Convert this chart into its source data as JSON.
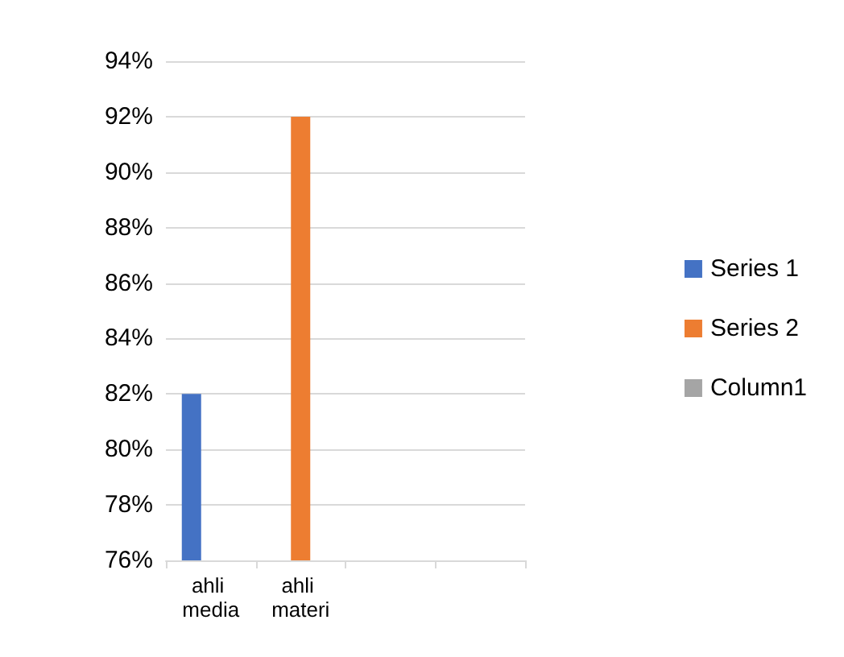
{
  "chart_data": {
    "type": "bar",
    "categories": [
      "ahli media",
      "ahli materi",
      null,
      null
    ],
    "series": [
      {
        "name": "Series 1",
        "color": "#4472c4",
        "values": [
          82,
          null,
          null,
          null
        ]
      },
      {
        "name": "Series 2",
        "color": "#ed7d31",
        "values": [
          null,
          92,
          null,
          null
        ]
      },
      {
        "name": "Column1",
        "color": "#a5a5a5",
        "values": [
          null,
          null,
          null,
          null
        ]
      }
    ],
    "ylim": [
      76,
      94
    ],
    "yticks": [
      {
        "value": 76,
        "label": "76%"
      },
      {
        "value": 78,
        "label": "78%"
      },
      {
        "value": 80,
        "label": "80%"
      },
      {
        "value": 82,
        "label": "82%"
      },
      {
        "value": 84,
        "label": "84%"
      },
      {
        "value": 86,
        "label": "86%"
      },
      {
        "value": 88,
        "label": "88%"
      },
      {
        "value": 90,
        "label": "90%"
      },
      {
        "value": 92,
        "label": "92%"
      },
      {
        "value": 94,
        "label": "94%"
      }
    ],
    "grid": "y",
    "legend": "right"
  }
}
